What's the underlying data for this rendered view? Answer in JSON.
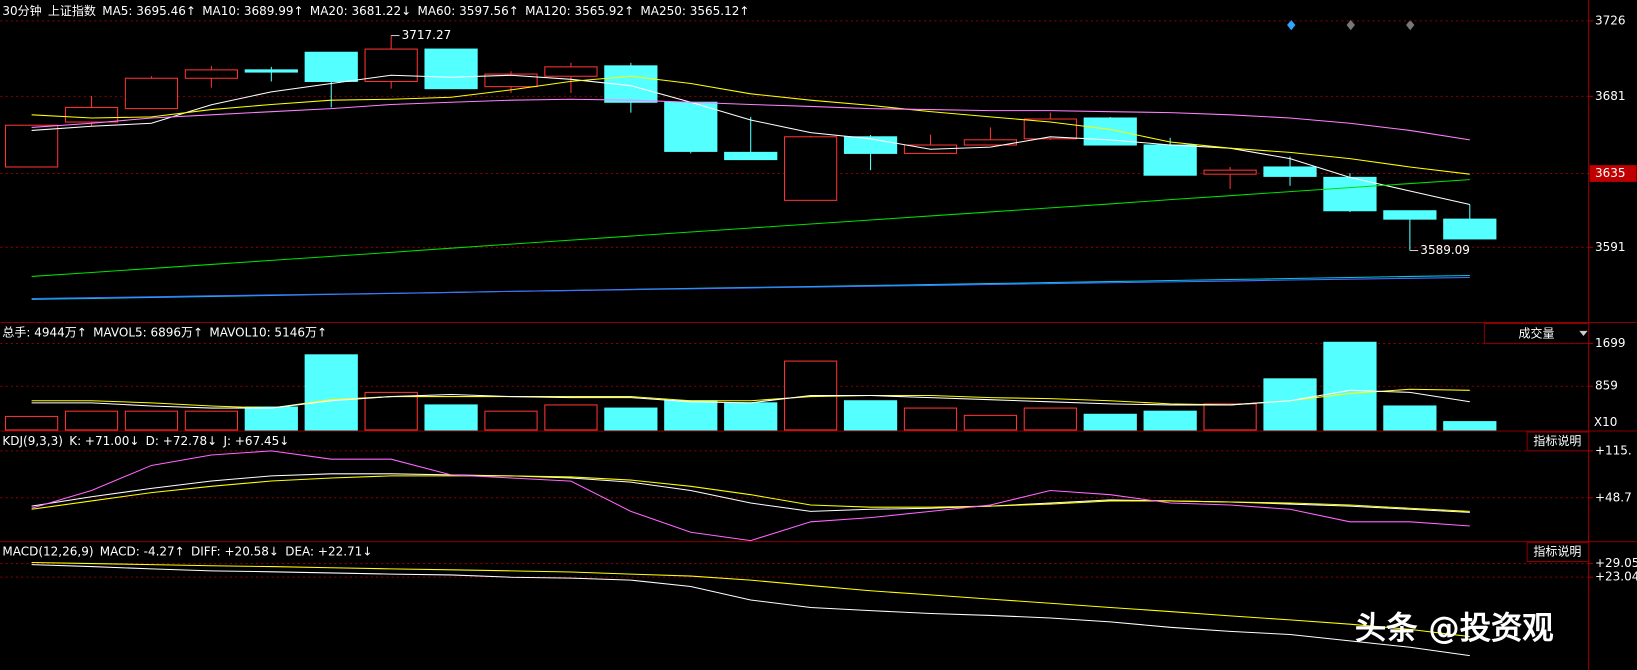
{
  "chart_data": [
    {
      "type": "candlestick",
      "period": "30分钟",
      "title": "上证指数",
      "open": [
        3638.9,
        3665.7,
        3673.7,
        3691.8,
        3696.8,
        3707.3,
        3689.9,
        3709.2,
        3686.8,
        3693.0,
        3699.2,
        3677.5,
        3647.6,
        3619.0,
        3656.9,
        3647.0,
        3652.0,
        3655.7,
        3668.1,
        3652.0,
        3634.6,
        3638.9,
        3632.7,
        3612.8,
        3607.8
      ],
      "high": [
        3663.8,
        3681.2,
        3693.0,
        3699.2,
        3698.6,
        3707.3,
        3717.27,
        3709.2,
        3696.0,
        3701.0,
        3701.0,
        3677.5,
        3668.8,
        3657.5,
        3658.0,
        3658.2,
        3662.5,
        3671.3,
        3668.7,
        3656.3,
        3638.9,
        3645.1,
        3635.2,
        3613.0,
        3616.5
      ],
      "low": [
        3638.9,
        3663.2,
        3673.7,
        3686.2,
        3689.9,
        3674.4,
        3685.6,
        3685.6,
        3683.0,
        3683.0,
        3671.3,
        3647.0,
        3643.3,
        3619.0,
        3637.0,
        3647.0,
        3652.0,
        3655.0,
        3652.0,
        3634.0,
        3625.8,
        3627.7,
        3612.0,
        3589.09,
        3596.0
      ],
      "close": [
        3663.8,
        3674.4,
        3691.8,
        3696.8,
        3695.5,
        3689.9,
        3709.2,
        3685.6,
        3694.3,
        3698.6,
        3677.5,
        3648.2,
        3643.3,
        3656.9,
        3647.0,
        3652.0,
        3655.1,
        3667.5,
        3652.0,
        3634.0,
        3637.0,
        3633.3,
        3612.8,
        3607.8,
        3596.0
      ],
      "up_color": "#ff3232",
      "down_color": "#54ffff",
      "ylim": [
        3546.8,
        3736.6
      ],
      "yticks": [
        3591,
        3635,
        3681,
        3726
      ],
      "grid": true,
      "annotations": [
        "3717.27",
        "3589.09"
      ],
      "series": [
        {
          "name": "MA5: 3695.46↑",
          "color": "#ffffff",
          "values": [
            3660.7,
            3663.2,
            3665.0,
            3676.0,
            3683.7,
            3688.7,
            3693.6,
            3692.4,
            3693.6,
            3691.2,
            3687.4,
            3677.5,
            3666.9,
            3659.4,
            3655.7,
            3649.5,
            3650.7,
            3656.9,
            3655.1,
            3652.0,
            3650.1,
            3643.9,
            3632.7,
            3624.6,
            3616.5
          ]
        },
        {
          "name": "MA10: 3689.99↑",
          "color": "#ffff00",
          "values": [
            3670.0,
            3668.1,
            3668.8,
            3673.1,
            3676.2,
            3678.7,
            3679.3,
            3680.5,
            3684.9,
            3689.9,
            3693.0,
            3688.7,
            3682.5,
            3678.7,
            3675.6,
            3671.9,
            3668.8,
            3665.7,
            3661.3,
            3653.8,
            3650.1,
            3647.6,
            3643.9,
            3638.9,
            3634.6
          ]
        },
        {
          "name": "MA20: 3681.22↓",
          "color": "#ff80ff",
          "values": [
            3662.5,
            3665.0,
            3668.1,
            3670.0,
            3671.9,
            3673.7,
            3676.2,
            3677.5,
            3678.7,
            3679.3,
            3678.7,
            3677.5,
            3676.2,
            3675.0,
            3673.7,
            3673.1,
            3672.5,
            3672.5,
            3671.9,
            3671.3,
            3670.0,
            3668.1,
            3665.0,
            3660.7,
            3655.1
          ]
        },
        {
          "name": "MA60: 3597.56↑",
          "color": "#00e000",
          "values": [
            3573.6,
            3576.0,
            3578.4,
            3580.8,
            3583.2,
            3585.6,
            3588.0,
            3590.5,
            3592.9,
            3595.3,
            3597.7,
            3600.1,
            3602.5,
            3604.9,
            3607.3,
            3609.7,
            3612.1,
            3614.5,
            3616.9,
            3619.4,
            3621.8,
            3624.2,
            3626.6,
            3629.0,
            3631.4
          ]
        },
        {
          "name": "MA120: 3565.92↑",
          "color": "#00c8e8",
          "values": [
            3559.9,
            3560.5,
            3561.1,
            3561.7,
            3562.3,
            3562.9,
            3563.5,
            3564.1,
            3564.7,
            3565.3,
            3565.9,
            3566.5,
            3567.1,
            3567.6,
            3568.2,
            3568.8,
            3569.4,
            3570.0,
            3570.6,
            3571.2,
            3571.8,
            3572.4,
            3573.0,
            3573.6,
            3574.2
          ]
        },
        {
          "name": "MA250: 3565.12↑",
          "color": "#4a6cff",
          "values": [
            3560.5,
            3561.0,
            3561.5,
            3562.1,
            3562.6,
            3563.1,
            3563.6,
            3564.1,
            3564.7,
            3565.2,
            3565.7,
            3566.2,
            3566.8,
            3567.3,
            3567.8,
            3568.3,
            3568.8,
            3569.4,
            3569.9,
            3570.4,
            3570.9,
            3571.5,
            3572.0,
            3572.5,
            3573.0
          ]
        }
      ]
    },
    {
      "type": "bar",
      "title": "总手: 4944万↑",
      "dropdown": "成交量",
      "unit_label": "X10",
      "values": [
        266,
        369,
        369,
        369,
        451,
        1476,
        738,
        492,
        369,
        492,
        430,
        574,
        533,
        1353,
        574,
        430,
        287,
        430,
        308,
        369,
        512,
        1004,
        1722,
        471,
        164
      ],
      "ylim": [
        0,
        2050
      ],
      "yticks": [
        859,
        1699
      ],
      "grid": true,
      "series": [
        {
          "name": "MAVOL5: 6896万↑",
          "color": "#ffff00",
          "values": [
            574,
            574,
            533,
            472,
            431,
            595,
            656,
            656,
            656,
            656,
            656,
            574,
            574,
            656,
            677,
            677,
            636,
            615,
            574,
            513,
            492,
            574,
            718,
            800,
            779
          ]
        },
        {
          "name": "MAVOL10: 5146万↑",
          "color": "#ffffff",
          "values": [
            533,
            533,
            472,
            431,
            431,
            574,
            656,
            697,
            656,
            636,
            636,
            554,
            533,
            677,
            677,
            636,
            595,
            554,
            513,
            492,
            492,
            574,
            779,
            738,
            554
          ]
        }
      ]
    },
    {
      "type": "line",
      "title": "KDJ(9,3,3)",
      "button": "指标说明",
      "ylim": [
        -14.9,
        141.8
      ],
      "yticks": [
        {
          "value": 48.7,
          "label": "+48.7"
        },
        {
          "value": 115.2,
          "label": "+115."
        }
      ],
      "grid": true,
      "series": [
        {
          "name": "K: +71.00↓",
          "color": "#ffffff",
          "values": [
            36.9,
            50.2,
            62.0,
            72.4,
            79.7,
            82.7,
            82.7,
            81.2,
            79.7,
            76.8,
            70.9,
            59.0,
            41.3,
            29.5,
            32.4,
            33.9,
            36.9,
            41.3,
            45.7,
            44.3,
            42.8,
            39.8,
            36.9,
            32.4,
            28.0
          ]
        },
        {
          "name": "D: +72.78↓",
          "color": "#ffff00",
          "values": [
            32.4,
            44.3,
            56.1,
            65.0,
            72.4,
            76.8,
            79.7,
            79.7,
            79.7,
            78.3,
            73.8,
            65.0,
            53.1,
            38.4,
            35.4,
            35.4,
            36.9,
            39.8,
            44.3,
            44.3,
            42.8,
            41.3,
            38.4,
            33.9,
            29.5
          ]
        },
        {
          "name": "J: +67.45↓",
          "color": "#ff66ff",
          "values": [
            33.9,
            59.0,
            94.5,
            109.3,
            115.2,
            103.4,
            103.4,
            81.2,
            76.8,
            72.3,
            29.5,
            -0.1,
            -11.9,
            14.7,
            20.6,
            29.5,
            38.4,
            59.0,
            53.1,
            41.3,
            38.4,
            32.4,
            14.7,
            14.7,
            8.8
          ]
        }
      ]
    },
    {
      "type": "line",
      "title": "MACD(12,26,9)",
      "indicator_label": "MACD: -4.27↑",
      "indicator_color": "#00ff00",
      "button": "指标说明",
      "ylim": [
        -18.1,
        38.3
      ],
      "yticks": [
        {
          "value": 23.04,
          "label": "+23.04"
        },
        {
          "value": 29.05,
          "label": "+29.05"
        }
      ],
      "grid": true,
      "series": [
        {
          "name": "DIFF: +20.58↓",
          "color": "#ffffff",
          "values": [
            28.6,
            27.7,
            26.7,
            25.8,
            25.4,
            24.9,
            24.4,
            24.0,
            23.0,
            22.6,
            21.7,
            18.9,
            12.9,
            9.6,
            8.2,
            6.9,
            6.1,
            4.9,
            3.2,
            0.8,
            -1.0,
            -2.4,
            -5.2,
            -8.0,
            -11.7
          ]
        },
        {
          "name": "DEA: +22.71↓",
          "color": "#ffff00",
          "values": [
            29.5,
            29.05,
            28.6,
            28.1,
            27.7,
            27.2,
            26.7,
            26.3,
            25.8,
            25.3,
            24.4,
            23.5,
            21.7,
            19.3,
            17.0,
            15.2,
            13.3,
            11.5,
            9.6,
            7.8,
            5.9,
            4.1,
            2.2,
            -0.1,
            -3.3
          ]
        }
      ]
    }
  ],
  "watermark": "头条 @投资观"
}
